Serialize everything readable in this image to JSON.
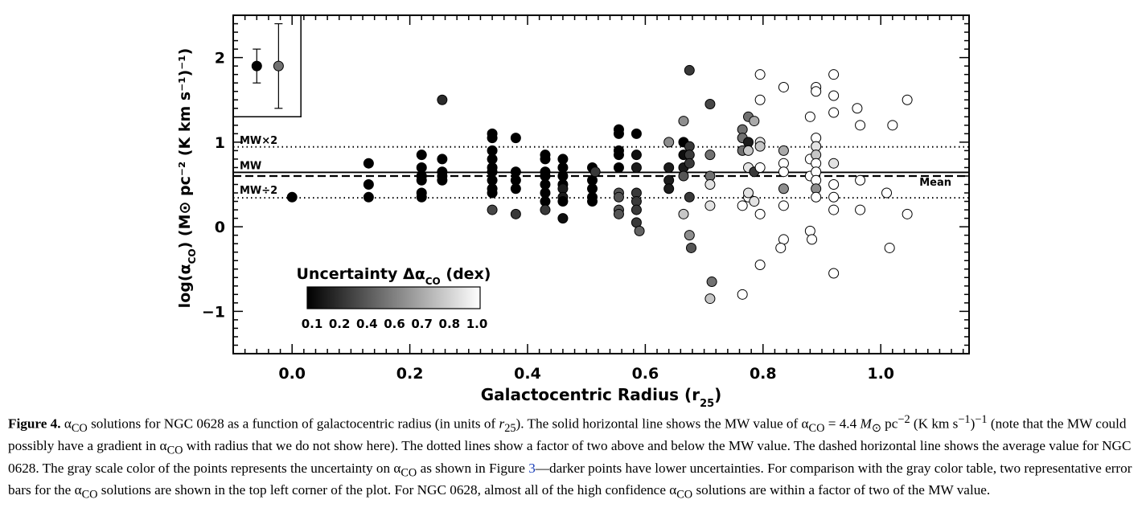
{
  "chart_data": {
    "type": "scatter",
    "xlabel": "Galactocentric Radius (r",
    "xlabel_sub": "25",
    "xlabel_end": ")",
    "ylabel": "log(α",
    "ylabel_sub": "CO",
    "ylabel_end": ") (M⊙ pc⁻² (K km s⁻¹)⁻¹)",
    "xlim": [
      -0.1,
      1.15
    ],
    "ylim": [
      -1.5,
      2.5
    ],
    "xticks": [
      0.0,
      0.2,
      0.4,
      0.6,
      0.8,
      1.0
    ],
    "xtick_labels": [
      "0.0",
      "0.2",
      "0.4",
      "0.6",
      "0.8",
      "1.0"
    ],
    "yticks": [
      -1,
      0,
      1,
      2
    ],
    "ytick_labels": [
      "−1",
      "0",
      "1",
      "2"
    ],
    "reference_lines": [
      {
        "label": "MW×2",
        "y": 0.944,
        "style": "dotted"
      },
      {
        "label": "MW",
        "y": 0.643,
        "style": "solid"
      },
      {
        "label": "MW÷2",
        "y": 0.342,
        "style": "dotted"
      },
      {
        "label": "Mean",
        "y": 0.6,
        "style": "dashed"
      }
    ],
    "error_bar_examples": [
      {
        "x": -0.06,
        "y": 1.9,
        "low": 1.7,
        "high": 2.1,
        "unc": 0.1
      },
      {
        "x": -0.023,
        "y": 1.9,
        "low": 1.4,
        "high": 2.4,
        "unc": 0.5
      }
    ],
    "colorbar": {
      "title": "Uncertainty Δα",
      "title_sub": "CO",
      "title_end": " (dex)",
      "range": [
        0.1,
        1.0
      ],
      "tick_labels": [
        "0.1",
        "0.2",
        "0.4",
        "0.6",
        "0.7",
        "0.8",
        "1.0"
      ],
      "tick_values": [
        0.1,
        0.2,
        0.4,
        0.6,
        0.7,
        0.8,
        1.0
      ]
    },
    "points": [
      {
        "x": 0.0,
        "y": 0.35,
        "u": 0.1
      },
      {
        "x": 0.13,
        "y": 0.75,
        "u": 0.1
      },
      {
        "x": 0.13,
        "y": 0.5,
        "u": 0.1
      },
      {
        "x": 0.13,
        "y": 0.35,
        "u": 0.1
      },
      {
        "x": 0.22,
        "y": 0.85,
        "u": 0.1
      },
      {
        "x": 0.22,
        "y": 0.7,
        "u": 0.1
      },
      {
        "x": 0.22,
        "y": 0.6,
        "u": 0.1
      },
      {
        "x": 0.22,
        "y": 0.55,
        "u": 0.1
      },
      {
        "x": 0.22,
        "y": 0.4,
        "u": 0.1
      },
      {
        "x": 0.22,
        "y": 0.35,
        "u": 0.1
      },
      {
        "x": 0.255,
        "y": 1.5,
        "u": 0.25
      },
      {
        "x": 0.255,
        "y": 0.8,
        "u": 0.1
      },
      {
        "x": 0.255,
        "y": 0.65,
        "u": 0.1
      },
      {
        "x": 0.255,
        "y": 0.6,
        "u": 0.1
      },
      {
        "x": 0.255,
        "y": 0.55,
        "u": 0.1
      },
      {
        "x": 0.34,
        "y": 1.1,
        "u": 0.1
      },
      {
        "x": 0.34,
        "y": 1.05,
        "u": 0.1
      },
      {
        "x": 0.34,
        "y": 0.9,
        "u": 0.1
      },
      {
        "x": 0.34,
        "y": 0.8,
        "u": 0.1
      },
      {
        "x": 0.34,
        "y": 0.7,
        "u": 0.1
      },
      {
        "x": 0.34,
        "y": 0.65,
        "u": 0.1
      },
      {
        "x": 0.34,
        "y": 0.55,
        "u": 0.1
      },
      {
        "x": 0.34,
        "y": 0.45,
        "u": 0.1
      },
      {
        "x": 0.34,
        "y": 0.4,
        "u": 0.1
      },
      {
        "x": 0.34,
        "y": 0.2,
        "u": 0.35
      },
      {
        "x": 0.38,
        "y": 1.05,
        "u": 0.1
      },
      {
        "x": 0.38,
        "y": 0.65,
        "u": 0.1
      },
      {
        "x": 0.38,
        "y": 0.55,
        "u": 0.1
      },
      {
        "x": 0.38,
        "y": 0.45,
        "u": 0.1
      },
      {
        "x": 0.38,
        "y": 0.15,
        "u": 0.3
      },
      {
        "x": 0.43,
        "y": 0.85,
        "u": 0.1
      },
      {
        "x": 0.43,
        "y": 0.8,
        "u": 0.1
      },
      {
        "x": 0.43,
        "y": 0.65,
        "u": 0.1
      },
      {
        "x": 0.43,
        "y": 0.6,
        "u": 0.1
      },
      {
        "x": 0.43,
        "y": 0.5,
        "u": 0.1
      },
      {
        "x": 0.43,
        "y": 0.4,
        "u": 0.1
      },
      {
        "x": 0.43,
        "y": 0.3,
        "u": 0.1
      },
      {
        "x": 0.43,
        "y": 0.2,
        "u": 0.3
      },
      {
        "x": 0.46,
        "y": 0.8,
        "u": 0.1
      },
      {
        "x": 0.46,
        "y": 0.7,
        "u": 0.1
      },
      {
        "x": 0.46,
        "y": 0.6,
        "u": 0.1
      },
      {
        "x": 0.46,
        "y": 0.5,
        "u": 0.1
      },
      {
        "x": 0.46,
        "y": 0.45,
        "u": 0.2
      },
      {
        "x": 0.46,
        "y": 0.35,
        "u": 0.2
      },
      {
        "x": 0.46,
        "y": 0.3,
        "u": 0.1
      },
      {
        "x": 0.46,
        "y": 0.1,
        "u": 0.15
      },
      {
        "x": 0.51,
        "y": 0.7,
        "u": 0.1
      },
      {
        "x": 0.51,
        "y": 0.55,
        "u": 0.1
      },
      {
        "x": 0.51,
        "y": 0.45,
        "u": 0.1
      },
      {
        "x": 0.51,
        "y": 0.35,
        "u": 0.1
      },
      {
        "x": 0.51,
        "y": 0.3,
        "u": 0.1
      },
      {
        "x": 0.515,
        "y": 0.65,
        "u": 0.3
      },
      {
        "x": 0.555,
        "y": 1.15,
        "u": 0.1
      },
      {
        "x": 0.555,
        "y": 1.1,
        "u": 0.1
      },
      {
        "x": 0.555,
        "y": 0.9,
        "u": 0.1
      },
      {
        "x": 0.555,
        "y": 0.85,
        "u": 0.1
      },
      {
        "x": 0.555,
        "y": 0.7,
        "u": 0.1
      },
      {
        "x": 0.555,
        "y": 0.4,
        "u": 0.4
      },
      {
        "x": 0.555,
        "y": 0.35,
        "u": 0.4
      },
      {
        "x": 0.555,
        "y": 0.2,
        "u": 0.4
      },
      {
        "x": 0.555,
        "y": 0.15,
        "u": 0.4
      },
      {
        "x": 0.585,
        "y": 1.1,
        "u": 0.1
      },
      {
        "x": 0.585,
        "y": 0.85,
        "u": 0.15
      },
      {
        "x": 0.585,
        "y": 0.7,
        "u": 0.2
      },
      {
        "x": 0.585,
        "y": 0.4,
        "u": 0.3
      },
      {
        "x": 0.585,
        "y": 0.3,
        "u": 0.3
      },
      {
        "x": 0.585,
        "y": 0.2,
        "u": 0.3
      },
      {
        "x": 0.585,
        "y": 0.05,
        "u": 0.3
      },
      {
        "x": 0.59,
        "y": -0.05,
        "u": 0.45
      },
      {
        "x": 0.64,
        "y": 1.0,
        "u": 0.6
      },
      {
        "x": 0.64,
        "y": 0.7,
        "u": 0.2
      },
      {
        "x": 0.64,
        "y": 0.55,
        "u": 0.2
      },
      {
        "x": 0.64,
        "y": 0.45,
        "u": 0.2
      },
      {
        "x": 0.665,
        "y": 1.25,
        "u": 0.6
      },
      {
        "x": 0.665,
        "y": 1.0,
        "u": 0.1
      },
      {
        "x": 0.665,
        "y": 0.85,
        "u": 0.15
      },
      {
        "x": 0.665,
        "y": 0.7,
        "u": 0.2
      },
      {
        "x": 0.665,
        "y": 0.6,
        "u": 0.4
      },
      {
        "x": 0.665,
        "y": 0.15,
        "u": 0.8
      },
      {
        "x": 0.675,
        "y": 1.85,
        "u": 0.3
      },
      {
        "x": 0.675,
        "y": 0.95,
        "u": 0.3
      },
      {
        "x": 0.675,
        "y": 0.85,
        "u": 0.3
      },
      {
        "x": 0.675,
        "y": 0.75,
        "u": 0.3
      },
      {
        "x": 0.675,
        "y": 0.35,
        "u": 0.3
      },
      {
        "x": 0.675,
        "y": -0.1,
        "u": 0.6
      },
      {
        "x": 0.678,
        "y": -0.25,
        "u": 0.4
      },
      {
        "x": 0.71,
        "y": 1.45,
        "u": 0.35
      },
      {
        "x": 0.71,
        "y": 0.85,
        "u": 0.5
      },
      {
        "x": 0.71,
        "y": 0.6,
        "u": 0.5
      },
      {
        "x": 0.71,
        "y": 0.5,
        "u": 0.9
      },
      {
        "x": 0.71,
        "y": 0.25,
        "u": 0.9
      },
      {
        "x": 0.713,
        "y": -0.65,
        "u": 0.5
      },
      {
        "x": 0.71,
        "y": -0.85,
        "u": 0.8
      },
      {
        "x": 0.765,
        "y": 1.15,
        "u": 0.5
      },
      {
        "x": 0.765,
        "y": 1.05,
        "u": 0.5
      },
      {
        "x": 0.765,
        "y": 0.9,
        "u": 0.5
      },
      {
        "x": 0.765,
        "y": 0.25,
        "u": 1.0
      },
      {
        "x": 0.765,
        "y": -0.8,
        "u": 1.0
      },
      {
        "x": 0.775,
        "y": 1.3,
        "u": 0.5
      },
      {
        "x": 0.775,
        "y": 1.0,
        "u": 0.2
      },
      {
        "x": 0.775,
        "y": 0.9,
        "u": 0.8
      },
      {
        "x": 0.775,
        "y": 0.7,
        "u": 0.9
      },
      {
        "x": 0.775,
        "y": 0.35,
        "u": 1.0
      },
      {
        "x": 0.775,
        "y": 0.4,
        "u": 0.9
      },
      {
        "x": 0.785,
        "y": 1.25,
        "u": 0.7
      },
      {
        "x": 0.785,
        "y": 0.65,
        "u": 0.3
      },
      {
        "x": 0.785,
        "y": 0.3,
        "u": 0.9
      },
      {
        "x": 0.795,
        "y": 1.8,
        "u": 1.0
      },
      {
        "x": 0.795,
        "y": 1.5,
        "u": 1.0
      },
      {
        "x": 0.795,
        "y": 1.0,
        "u": 0.9
      },
      {
        "x": 0.795,
        "y": 0.95,
        "u": 0.8
      },
      {
        "x": 0.795,
        "y": 0.7,
        "u": 1.0
      },
      {
        "x": 0.795,
        "y": 0.15,
        "u": 1.0
      },
      {
        "x": 0.795,
        "y": -0.45,
        "u": 1.0
      },
      {
        "x": 0.835,
        "y": 1.65,
        "u": 1.0
      },
      {
        "x": 0.835,
        "y": 0.9,
        "u": 0.7
      },
      {
        "x": 0.835,
        "y": 0.75,
        "u": 1.0
      },
      {
        "x": 0.835,
        "y": 0.65,
        "u": 1.0
      },
      {
        "x": 0.835,
        "y": 0.45,
        "u": 0.6
      },
      {
        "x": 0.835,
        "y": 0.25,
        "u": 1.0
      },
      {
        "x": 0.835,
        "y": -0.15,
        "u": 1.0
      },
      {
        "x": 0.83,
        "y": -0.25,
        "u": 1.0
      },
      {
        "x": 0.88,
        "y": 1.3,
        "u": 1.0
      },
      {
        "x": 0.88,
        "y": 0.8,
        "u": 1.0
      },
      {
        "x": 0.88,
        "y": 0.6,
        "u": 1.0
      },
      {
        "x": 0.88,
        "y": -0.05,
        "u": 1.0
      },
      {
        "x": 0.883,
        "y": -0.15,
        "u": 1.0
      },
      {
        "x": 0.89,
        "y": 1.65,
        "u": 1.0
      },
      {
        "x": 0.89,
        "y": 1.6,
        "u": 1.0
      },
      {
        "x": 0.89,
        "y": 1.05,
        "u": 1.0
      },
      {
        "x": 0.89,
        "y": 0.95,
        "u": 0.9
      },
      {
        "x": 0.89,
        "y": 0.85,
        "u": 0.8
      },
      {
        "x": 0.89,
        "y": 0.75,
        "u": 1.0
      },
      {
        "x": 0.89,
        "y": 0.65,
        "u": 1.0
      },
      {
        "x": 0.89,
        "y": 0.55,
        "u": 1.0
      },
      {
        "x": 0.89,
        "y": 0.45,
        "u": 0.6
      },
      {
        "x": 0.89,
        "y": 0.35,
        "u": 1.0
      },
      {
        "x": 0.92,
        "y": 1.8,
        "u": 1.0
      },
      {
        "x": 0.92,
        "y": 1.55,
        "u": 1.0
      },
      {
        "x": 0.92,
        "y": 1.35,
        "u": 1.0
      },
      {
        "x": 0.92,
        "y": 0.75,
        "u": 0.9
      },
      {
        "x": 0.92,
        "y": 0.5,
        "u": 1.0
      },
      {
        "x": 0.92,
        "y": 0.35,
        "u": 1.0
      },
      {
        "x": 0.92,
        "y": 0.2,
        "u": 1.0
      },
      {
        "x": 0.92,
        "y": -0.55,
        "u": 1.0
      },
      {
        "x": 0.96,
        "y": 1.4,
        "u": 1.0
      },
      {
        "x": 0.965,
        "y": 1.2,
        "u": 1.0
      },
      {
        "x": 0.965,
        "y": 0.55,
        "u": 1.0
      },
      {
        "x": 0.965,
        "y": 0.2,
        "u": 1.0
      },
      {
        "x": 1.01,
        "y": 0.4,
        "u": 1.0
      },
      {
        "x": 1.015,
        "y": -0.25,
        "u": 1.0
      },
      {
        "x": 1.02,
        "y": 1.2,
        "u": 1.0
      },
      {
        "x": 1.045,
        "y": 1.5,
        "u": 1.0
      },
      {
        "x": 1.045,
        "y": 0.15,
        "u": 1.0
      }
    ]
  },
  "caption": {
    "label": "Figure 4.",
    "t1": " α",
    "s1": "CO",
    "t2": " solutions for NGC 0628 as a function of galactocentric radius (in units of ",
    "r25": "r",
    "s2": "25",
    "t3": "). The solid horizontal line shows the MW value of α",
    "s3": "CO",
    "t4": " = 4.4 ",
    "msun": "M",
    "sun": "⊙",
    "t5": " pc",
    "sup1": "−2",
    "t6": " (K km s",
    "sup2": "−1",
    "t7": ")",
    "sup3": "−1",
    "t8": " (note that the MW could possibly have a gradient in α",
    "s4": "CO",
    "t9": " with radius that we do not show here). The dotted lines show a factor of two above and below the MW value. The dashed horizontal line shows the average value for NGC 0628. The gray scale color of the points represents the uncertainty on α",
    "s5": "CO",
    "t10": " as shown in Figure ",
    "fig_ref": "3",
    "t11": "—darker points have lower uncertainties. For comparison with the gray color table, two representative error bars for the α",
    "s6": "CO",
    "t12": " solutions are shown in the top left corner of the plot. For NGC 0628, almost all of the high confidence α",
    "s7": "CO",
    "t13": " solutions are within a factor of two of the MW value."
  }
}
